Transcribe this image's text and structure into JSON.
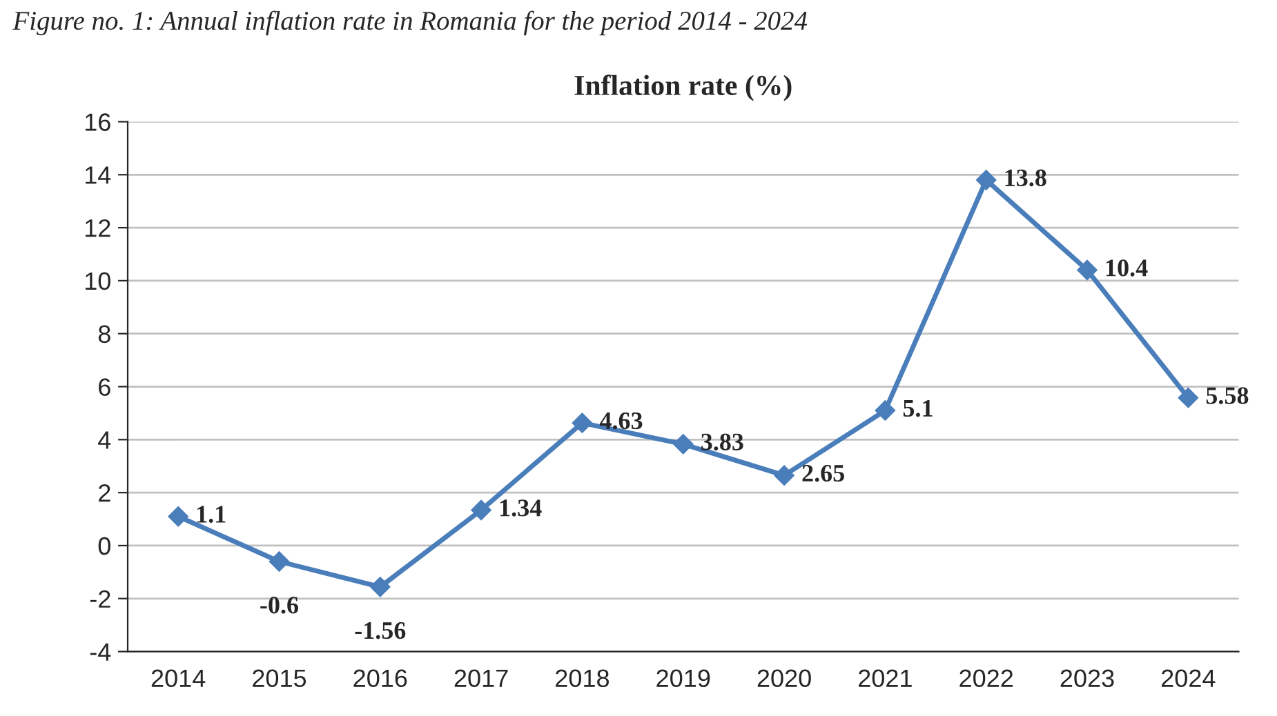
{
  "chart_data": {
    "type": "line",
    "title": "Inflation rate (%)",
    "annotations": [
      "Figure no. 1: Annual inflation rate in Romania for the period 2014 - 2024"
    ],
    "categories": [
      "2014",
      "2015",
      "2016",
      "2017",
      "2018",
      "2019",
      "2020",
      "2021",
      "2022",
      "2023",
      "2024"
    ],
    "series": [
      {
        "color": "#4a7ebb",
        "values": [
          1.1,
          -0.6,
          -1.56,
          1.34,
          4.63,
          3.83,
          2.65,
          5.1,
          13.8,
          10.4,
          5.58
        ]
      }
    ],
    "ylim": [
      -4,
      16
    ],
    "yticks": [
      -4,
      -2,
      0,
      2,
      4,
      6,
      8,
      10,
      12,
      14,
      16
    ],
    "grid": "y",
    "marker": "diamond",
    "line_style": "solid",
    "data_labels": true,
    "legend": false
  }
}
